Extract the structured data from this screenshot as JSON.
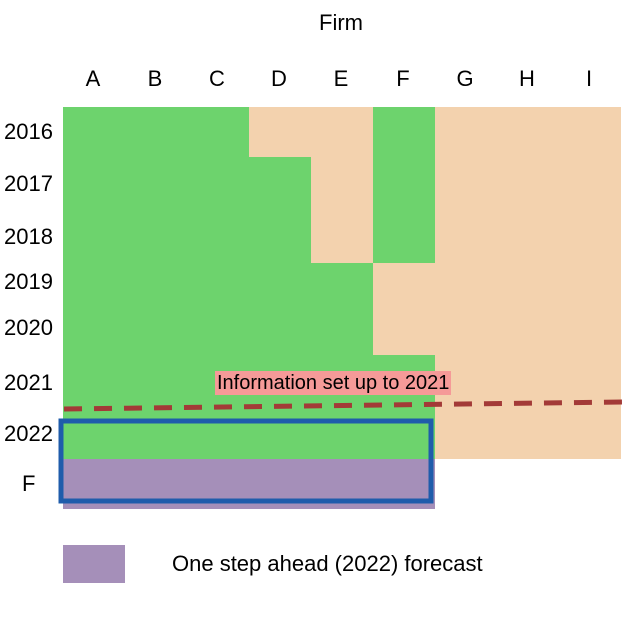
{
  "title": "Firm",
  "columns": [
    "A",
    "B",
    "C",
    "D",
    "E",
    "F",
    "G",
    "H",
    "I"
  ],
  "rows": [
    "2016",
    "2017",
    "2018",
    "2019",
    "2020",
    "2021",
    "2022",
    "F"
  ],
  "annotation": "Information set up to 2021",
  "legend": {
    "label": "One step ahead (2022) forecast",
    "color": "#a58fb9"
  },
  "colors": {
    "available": "#6dd36d",
    "unavailable": "#f3d2ae",
    "forecast": "#a58fb9",
    "info_line": "#a33a37",
    "box": "#1f5cab",
    "annotation_bg": "#f59a98"
  },
  "grid": {
    "2016": [
      "available",
      "available",
      "available",
      "unavailable",
      "unavailable",
      "available",
      "unavailable",
      "unavailable",
      "unavailable"
    ],
    "2017": [
      "available",
      "available",
      "available",
      "available",
      "unavailable",
      "available",
      "unavailable",
      "unavailable",
      "unavailable"
    ],
    "2018": [
      "available",
      "available",
      "available",
      "available",
      "unavailable",
      "available",
      "unavailable",
      "unavailable",
      "unavailable"
    ],
    "2019": [
      "available",
      "available",
      "available",
      "available",
      "available",
      "unavailable",
      "unavailable",
      "unavailable",
      "unavailable"
    ],
    "2020": [
      "available",
      "available",
      "available",
      "available",
      "available",
      "unavailable",
      "unavailable",
      "unavailable",
      "unavailable"
    ],
    "2021": [
      "available",
      "available",
      "available",
      "available",
      "available",
      "available",
      "unavailable",
      "unavailable",
      "unavailable"
    ],
    "2022": [
      "available",
      "available",
      "available",
      "available",
      "available",
      "available",
      "unavailable",
      "unavailable",
      "unavailable"
    ],
    "F": [
      "forecast",
      "forecast",
      "forecast",
      "forecast",
      "forecast",
      "forecast",
      "none",
      "none",
      "none"
    ]
  }
}
